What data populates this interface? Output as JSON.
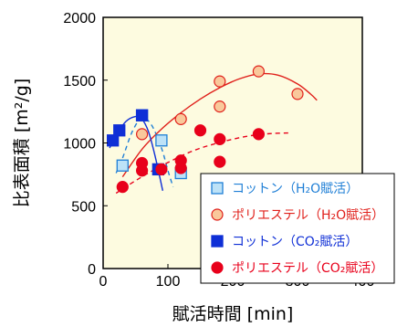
{
  "chart_data": {
    "type": "scatter",
    "xlabel": "賦活時間 [min]",
    "ylabel": "比表面積 [m²/g]",
    "xlim": [
      0,
      400
    ],
    "ylim": [
      0,
      2000
    ],
    "x_ticks": [
      "0",
      "100",
      "200",
      "300",
      "400"
    ],
    "y_ticks": [
      "0",
      "500",
      "1000",
      "1500",
      "2000"
    ],
    "grid": false,
    "legend_position": "bottom-right",
    "plot_background": "#fdfbe0",
    "series": [
      {
        "name": "コットン（H₂O賦活）",
        "marker": "square-open",
        "color": "#1f7fd6",
        "fill": "#bde2f7",
        "line_style": "dashed",
        "points": [
          [
            30,
            820
          ],
          [
            60,
            1220
          ],
          [
            90,
            1020
          ],
          [
            120,
            760
          ]
        ],
        "fit": [
          [
            20,
            760
          ],
          [
            30,
            880
          ],
          [
            45,
            1090
          ],
          [
            60,
            1200
          ],
          [
            75,
            1140
          ],
          [
            90,
            960
          ],
          [
            100,
            780
          ],
          [
            108,
            650
          ]
        ]
      },
      {
        "name": "ポリエステル（H₂O賦活）",
        "marker": "circle",
        "color": "#e0201b",
        "fill": "#f9c89b",
        "line_style": "solid",
        "points": [
          [
            60,
            1070
          ],
          [
            120,
            1190
          ],
          [
            180,
            1290
          ],
          [
            180,
            1490
          ],
          [
            240,
            1570
          ],
          [
            300,
            1390
          ]
        ],
        "fit": [
          [
            30,
            730
          ],
          [
            60,
            950
          ],
          [
            90,
            1110
          ],
          [
            120,
            1240
          ],
          [
            150,
            1350
          ],
          [
            180,
            1440
          ],
          [
            210,
            1510
          ],
          [
            240,
            1550
          ],
          [
            270,
            1540
          ],
          [
            300,
            1470
          ],
          [
            320,
            1390
          ],
          [
            330,
            1340
          ]
        ]
      },
      {
        "name": "コットン（CO₂賦活）",
        "marker": "square",
        "color": "#0f2fd6",
        "fill": "#0f2fd6",
        "line_style": "solid",
        "points": [
          [
            15,
            1020
          ],
          [
            25,
            1100
          ],
          [
            60,
            1220
          ],
          [
            85,
            790
          ]
        ],
        "fit": [
          [
            10,
            960
          ],
          [
            20,
            1060
          ],
          [
            35,
            1170
          ],
          [
            50,
            1210
          ],
          [
            60,
            1190
          ],
          [
            70,
            1090
          ],
          [
            80,
            900
          ],
          [
            92,
            620
          ]
        ]
      },
      {
        "name": "ポリエステル（CO₂賦活）",
        "marker": "circle",
        "color": "#e8001b",
        "fill": "#e8001b",
        "line_style": "dashed",
        "points": [
          [
            30,
            650
          ],
          [
            60,
            780
          ],
          [
            60,
            840
          ],
          [
            90,
            790
          ],
          [
            120,
            860
          ],
          [
            120,
            800
          ],
          [
            150,
            1100
          ],
          [
            180,
            1030
          ],
          [
            180,
            850
          ],
          [
            240,
            1070
          ]
        ],
        "fit": [
          [
            20,
            600
          ],
          [
            50,
            700
          ],
          [
            80,
            790
          ],
          [
            110,
            870
          ],
          [
            140,
            940
          ],
          [
            170,
            990
          ],
          [
            200,
            1030
          ],
          [
            230,
            1060
          ],
          [
            260,
            1075
          ],
          [
            290,
            1080
          ]
        ]
      }
    ],
    "legend": [
      "コットン（H₂O賦活）",
      "ポリエステル（H₂O賦活）",
      "コットン（CO₂賦活）",
      "ポリエステル（CO₂賦活）"
    ]
  }
}
